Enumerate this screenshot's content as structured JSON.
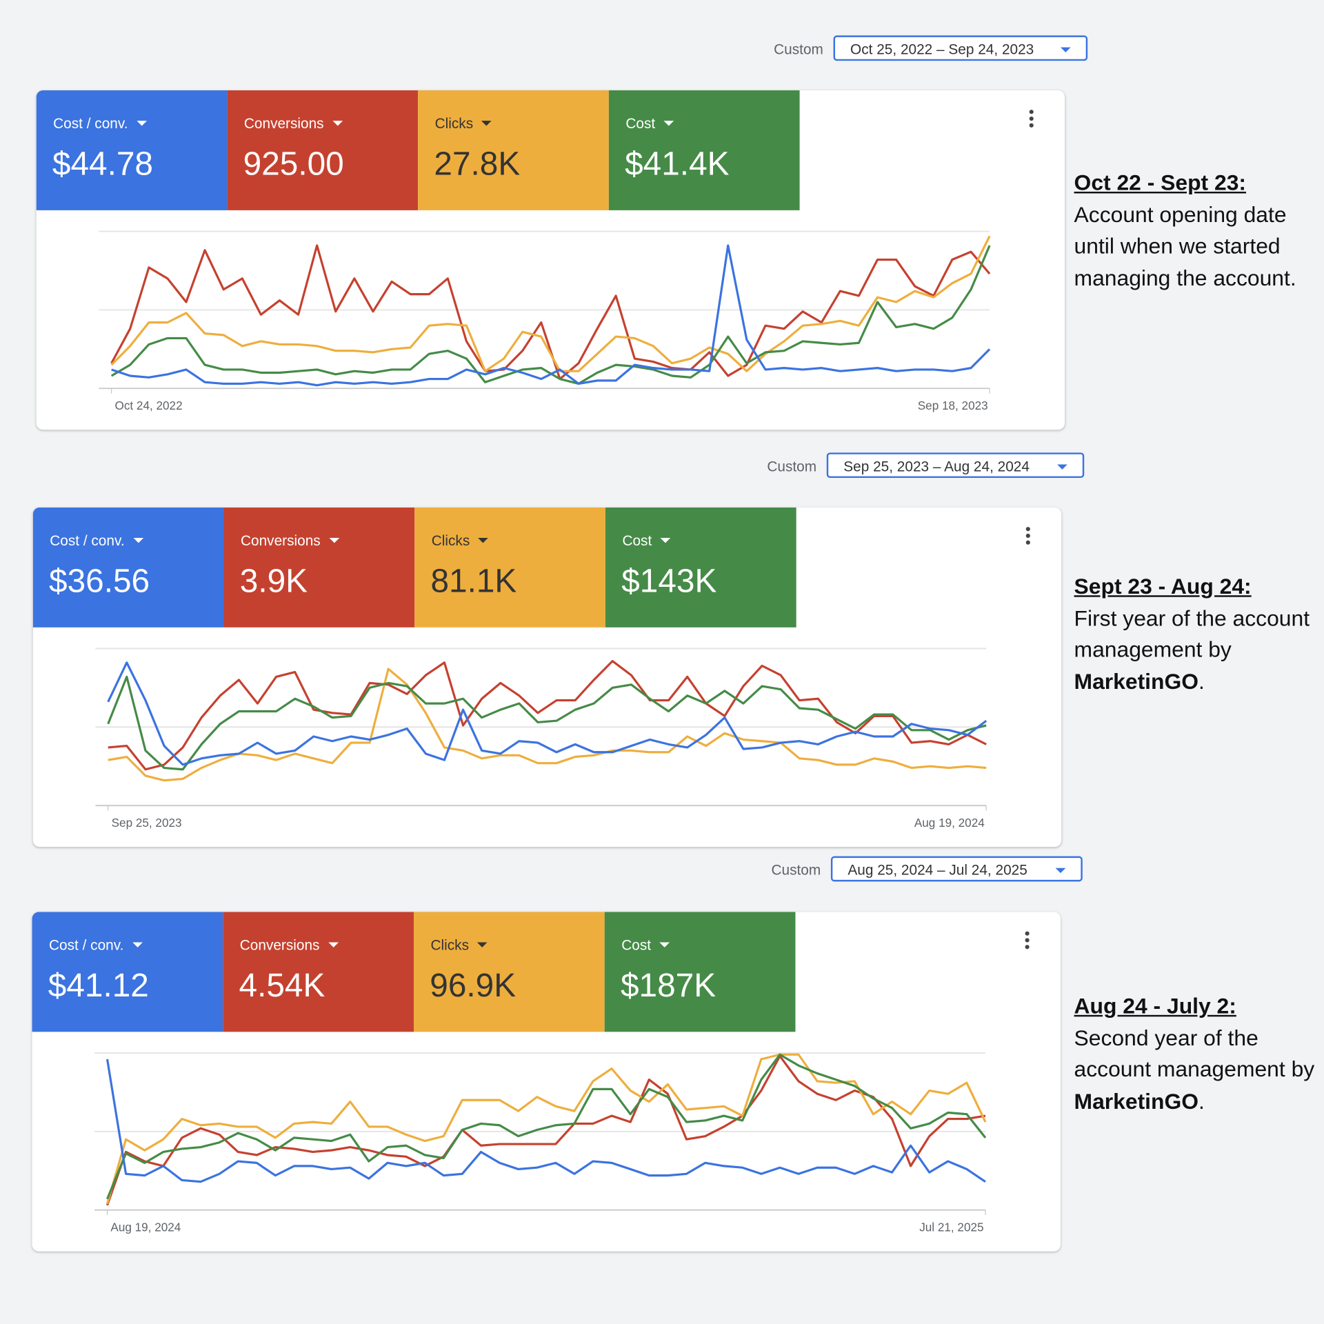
{
  "panels": [
    {
      "date_range": {
        "label": "Custom",
        "value": "Oct 25, 2022 – Sep 24, 2023"
      },
      "scorecards": [
        {
          "label": "Cost / conv.",
          "value": "$44.78"
        },
        {
          "label": "Conversions",
          "value": "925.00"
        },
        {
          "label": "Clicks",
          "value": "27.8K"
        },
        {
          "label": "Cost",
          "value": "$41.4K"
        }
      ],
      "chart": {
        "type": "line",
        "ylim": [
          0,
          100
        ],
        "yticks": [
          0,
          50,
          100
        ],
        "grid": true,
        "categories": [
          "Oct 24, 2022",
          null,
          null,
          null,
          null,
          null,
          null,
          null,
          null,
          null,
          null,
          null,
          null,
          null,
          null,
          null,
          null,
          null,
          null,
          null,
          null,
          null,
          null,
          null,
          null,
          null,
          null,
          null,
          null,
          null,
          null,
          null,
          null,
          null,
          null,
          null,
          null,
          null,
          null,
          null,
          null,
          null,
          null,
          null,
          null,
          null,
          null,
          "Sep 18, 2023"
        ],
        "series": [
          {
            "color": "#3b73e0",
            "values": [
              12,
              8,
              7,
              9,
              12,
              4,
              3,
              3,
              4,
              3,
              4,
              2,
              4,
              3,
              4,
              3,
              4,
              6,
              6,
              12,
              9,
              13,
              10,
              6,
              12,
              3,
              5,
              5,
              15,
              13,
              12,
              12,
              11,
              91,
              31,
              12,
              13,
              12,
              13,
              11,
              12,
              13,
              11,
              12,
              12,
              11,
              13,
              25
            ]
          },
          {
            "color": "#c5412f",
            "values": [
              16,
              38,
              77,
              70,
              55,
              88,
              63,
              70,
              47,
              56,
              47,
              91,
              49,
              70,
              49,
              68,
              60,
              60,
              70,
              30,
              11,
              12,
              24,
              42,
              6,
              16,
              38,
              59,
              19,
              17,
              13,
              12,
              23,
              8,
              15,
              40,
              38,
              49,
              42,
              62,
              59,
              82,
              82,
              65,
              59,
              82,
              87,
              73
            ]
          },
          {
            "color": "#eeae3d",
            "values": [
              15,
              27,
              42,
              42,
              48,
              35,
              34,
              27,
              30,
              28,
              28,
              27,
              24,
              24,
              23,
              25,
              26,
              40,
              41,
              40,
              11,
              19,
              36,
              33,
              11,
              11,
              22,
              33,
              32,
              27,
              16,
              19,
              26,
              22,
              11,
              22,
              30,
              40,
              41,
              43,
              40,
              58,
              55,
              62,
              58,
              67,
              73,
              97
            ]
          },
          {
            "color": "#458b47",
            "values": [
              8,
              15,
              28,
              32,
              32,
              15,
              12,
              12,
              10,
              10,
              11,
              12,
              9,
              11,
              10,
              12,
              12,
              22,
              24,
              19,
              4,
              8,
              12,
              13,
              6,
              3,
              10,
              15,
              14,
              12,
              8,
              7,
              15,
              33,
              16,
              23,
              24,
              30,
              29,
              28,
              29,
              55,
              39,
              41,
              38,
              45,
              63,
              91
            ]
          }
        ]
      },
      "annotation": {
        "heading": "Oct 22 - Sept 23:",
        "body": [
          {
            "text": "Account opening date until when we started managing the account."
          }
        ]
      }
    },
    {
      "date_range": {
        "label": "Custom",
        "value": "Sep 25, 2023 – Aug 24, 2024"
      },
      "scorecards": [
        {
          "label": "Cost / conv.",
          "value": "$36.56"
        },
        {
          "label": "Conversions",
          "value": "3.9K"
        },
        {
          "label": "Clicks",
          "value": "81.1K"
        },
        {
          "label": "Cost",
          "value": "$143K"
        }
      ],
      "chart": {
        "type": "line",
        "ylim": [
          0,
          100
        ],
        "yticks": [
          0,
          50,
          100
        ],
        "grid": true,
        "categories": [
          "Sep 25, 2023",
          null,
          null,
          null,
          null,
          null,
          null,
          null,
          null,
          null,
          null,
          null,
          null,
          null,
          null,
          null,
          null,
          null,
          null,
          null,
          null,
          null,
          null,
          null,
          null,
          null,
          null,
          null,
          null,
          null,
          null,
          null,
          null,
          null,
          null,
          null,
          null,
          null,
          null,
          null,
          null,
          null,
          null,
          null,
          null,
          null,
          null,
          "Aug 19, 2024"
        ],
        "series": [
          {
            "color": "#3b73e0",
            "values": [
              66,
              91,
              67,
              38,
              26,
              30,
              32,
              33,
              40,
              33,
              35,
              44,
              41,
              44,
              42,
              45,
              49,
              33,
              29,
              61,
              35,
              33,
              41,
              40,
              34,
              39,
              34,
              34,
              38,
              42,
              39,
              37,
              45,
              56,
              36,
              37,
              40,
              41,
              39,
              44,
              47,
              44,
              44,
              52,
              49,
              48,
              45,
              54
            ]
          },
          {
            "color": "#c5412f",
            "values": [
              37,
              38,
              23,
              26,
              37,
              56,
              70,
              80,
              65,
              82,
              85,
              61,
              59,
              58,
              78,
              77,
              71,
              83,
              91,
              51,
              68,
              78,
              70,
              59,
              67,
              67,
              80,
              92,
              83,
              67,
              67,
              82,
              65,
              57,
              76,
              89,
              83,
              67,
              68,
              53,
              46,
              57,
              57,
              40,
              41,
              39,
              45,
              39
            ]
          },
          {
            "color": "#eeae3d",
            "values": [
              29,
              31,
              19,
              16,
              17,
              24,
              29,
              33,
              32,
              29,
              33,
              30,
              27,
              40,
              40,
              87,
              77,
              59,
              37,
              35,
              30,
              32,
              32,
              27,
              27,
              31,
              32,
              35,
              35,
              34,
              34,
              44,
              38,
              46,
              42,
              41,
              40,
              30,
              29,
              26,
              26,
              30,
              28,
              24,
              25,
              24,
              25,
              24
            ]
          },
          {
            "color": "#458b47",
            "values": [
              52,
              82,
              35,
              24,
              23,
              39,
              52,
              60,
              60,
              60,
              68,
              63,
              56,
              57,
              75,
              78,
              76,
              65,
              65,
              68,
              56,
              61,
              65,
              53,
              54,
              61,
              65,
              75,
              77,
              68,
              60,
              70,
              65,
              73,
              65,
              76,
              74,
              62,
              61,
              55,
              49,
              58,
              58,
              48,
              48,
              42,
              48,
              51
            ]
          }
        ]
      },
      "annotation": {
        "heading": "Sept 23 - Aug 24:",
        "body": [
          {
            "text": "First year of the account management by "
          },
          {
            "text": "MarketinGO",
            "bold": true
          },
          {
            "text": "."
          }
        ]
      }
    },
    {
      "date_range": {
        "label": "Custom",
        "value": "Aug 25, 2024 – Jul 24, 2025"
      },
      "scorecards": [
        {
          "label": "Cost / conv.",
          "value": "$41.12"
        },
        {
          "label": "Conversions",
          "value": "4.54K"
        },
        {
          "label": "Clicks",
          "value": "96.9K"
        },
        {
          "label": "Cost",
          "value": "$187K"
        }
      ],
      "chart": {
        "type": "line",
        "ylim": [
          0,
          100
        ],
        "yticks": [
          0,
          50,
          100
        ],
        "grid": true,
        "categories": [
          "Aug 19, 2024",
          null,
          null,
          null,
          null,
          null,
          null,
          null,
          null,
          null,
          null,
          null,
          null,
          null,
          null,
          null,
          null,
          null,
          null,
          null,
          null,
          null,
          null,
          null,
          null,
          null,
          null,
          null,
          null,
          null,
          null,
          null,
          null,
          null,
          null,
          null,
          null,
          null,
          null,
          null,
          null,
          null,
          null,
          null,
          null,
          null,
          null,
          "Jul 21, 2025"
        ],
        "series": [
          {
            "color": "#3b73e0",
            "values": [
              96,
              23,
              22,
              28,
              19,
              18,
              23,
              31,
              30,
              22,
              28,
              28,
              26,
              27,
              20,
              30,
              28,
              30,
              22,
              23,
              37,
              30,
              26,
              27,
              30,
              23,
              31,
              30,
              26,
              22,
              22,
              23,
              30,
              28,
              27,
              23,
              27,
              23,
              27,
              27,
              23,
              28,
              24,
              41,
              24,
              31,
              26,
              18
            ]
          },
          {
            "color": "#c5412f",
            "values": [
              3,
              37,
              31,
              28,
              46,
              52,
              48,
              37,
              35,
              40,
              39,
              37,
              38,
              40,
              38,
              35,
              34,
              28,
              34,
              51,
              41,
              42,
              42,
              42,
              42,
              55,
              55,
              60,
              56,
              83,
              74,
              45,
              47,
              53,
              60,
              76,
              98,
              82,
              74,
              70,
              76,
              72,
              58,
              28,
              47,
              58,
              58,
              60
            ]
          },
          {
            "color": "#eeae3d",
            "values": [
              4,
              45,
              38,
              45,
              58,
              54,
              55,
              53,
              53,
              46,
              55,
              56,
              55,
              69,
              53,
              53,
              48,
              44,
              47,
              70,
              70,
              70,
              63,
              72,
              66,
              63,
              82,
              90,
              76,
              69,
              80,
              64,
              65,
              66,
              60,
              96,
              99,
              99,
              82,
              81,
              82,
              61,
              69,
              61,
              76,
              74,
              81,
              56
            ]
          },
          {
            "color": "#458b47",
            "values": [
              7,
              36,
              30,
              37,
              39,
              40,
              43,
              49,
              45,
              38,
              46,
              45,
              44,
              48,
              31,
              40,
              41,
              35,
              33,
              51,
              55,
              54,
              47,
              51,
              54,
              55,
              77,
              77,
              61,
              77,
              72,
              56,
              57,
              60,
              57,
              83,
              99,
              92,
              87,
              83,
              79,
              71,
              65,
              52,
              55,
              62,
              61,
              46
            ]
          }
        ]
      },
      "annotation": {
        "heading": "Aug 24 - July 2:",
        "body": [
          {
            "text": "Second year of the account management by "
          },
          {
            "text": "MarketinGO",
            "bold": true
          },
          {
            "text": "."
          }
        ]
      }
    }
  ]
}
